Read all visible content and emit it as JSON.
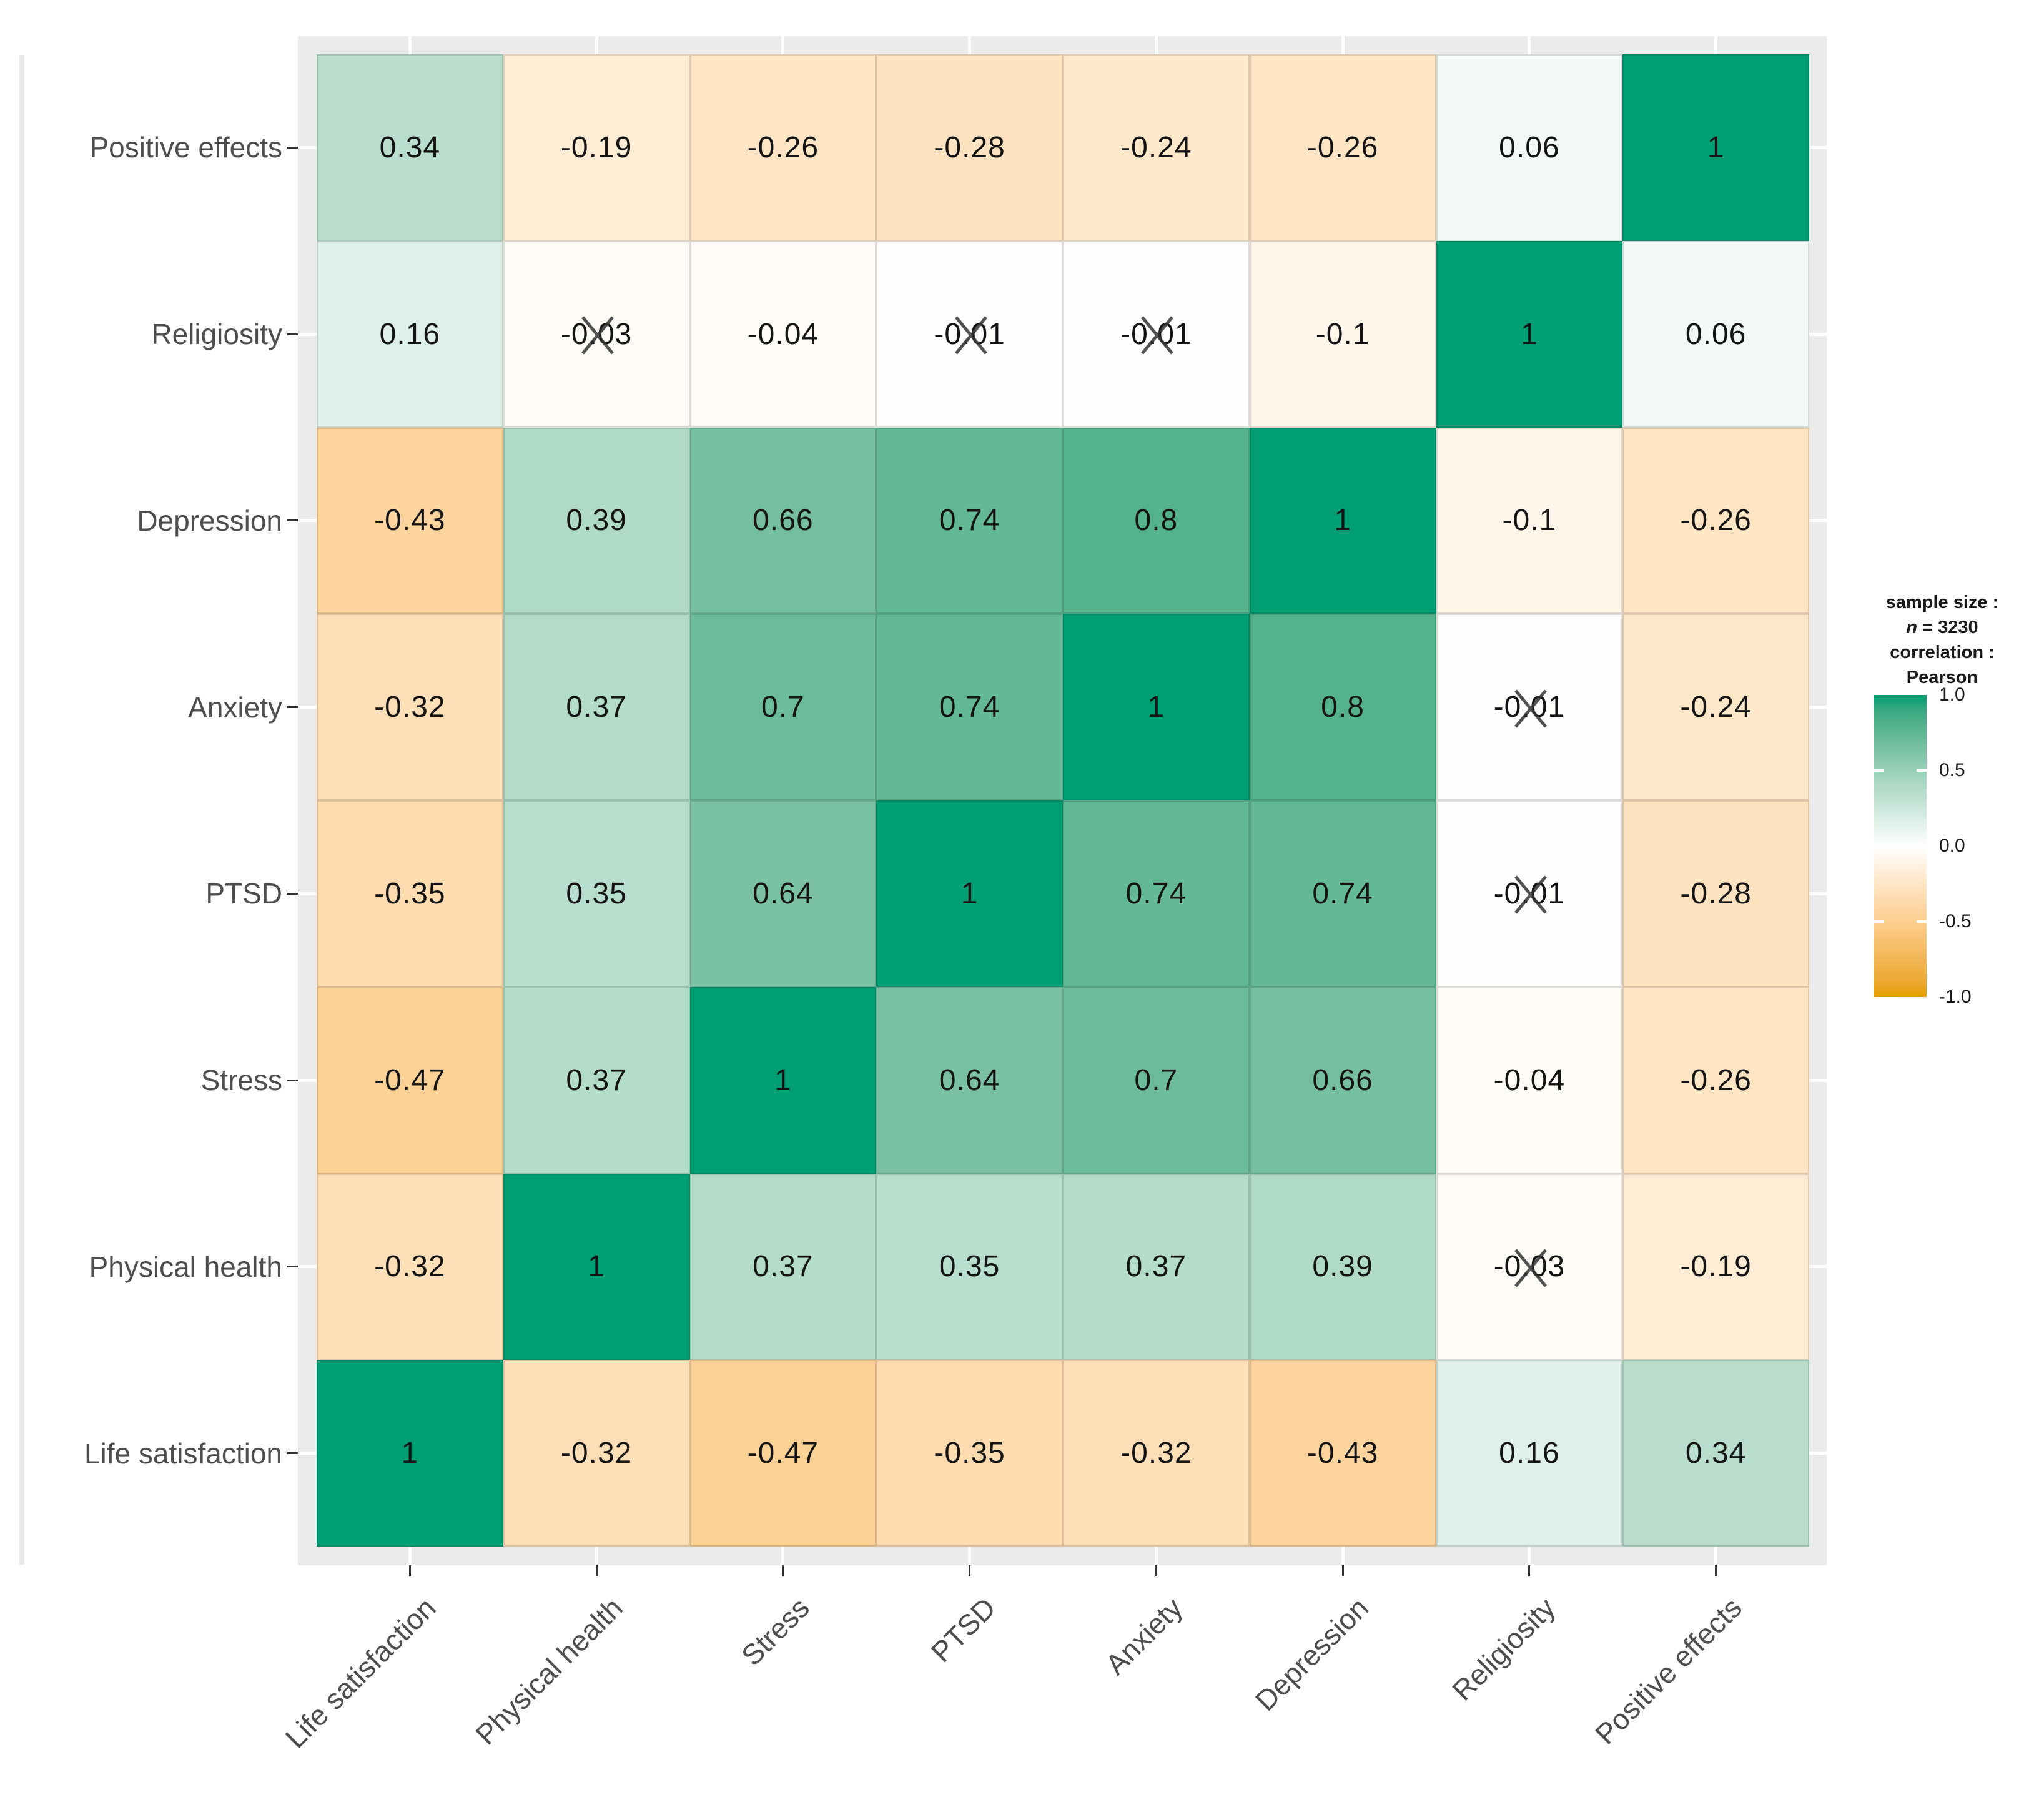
{
  "legend": {
    "sample_size_label": "sample size :",
    "n_italic": "n",
    "n_rest": " = 3230",
    "correlation_label": "correlation :",
    "method": "Pearson",
    "tick_labels": [
      "1.0",
      "0.5",
      "0.0",
      "-0.5",
      "-1.0"
    ],
    "tick_values": [
      1,
      0.5,
      0,
      -0.5,
      -1
    ]
  },
  "chart_data": {
    "type": "heatmap",
    "subtype": "correlation-matrix",
    "sample_size_text": "n = 3230",
    "method": "Pearson",
    "columns": [
      "Life satisfaction",
      "Physical health",
      "Stress",
      "PTSD",
      "Anxiety",
      "Depression",
      "Religiosity",
      "Positive effects"
    ],
    "rows": [
      {
        "label": "Positive effects",
        "values": [
          0.34,
          -0.19,
          -0.26,
          -0.28,
          -0.24,
          -0.26,
          0.06,
          1
        ],
        "crossed": [
          false,
          false,
          false,
          false,
          false,
          false,
          false,
          false
        ]
      },
      {
        "label": "Religiosity",
        "values": [
          0.16,
          -0.03,
          -0.04,
          -0.01,
          -0.01,
          -0.1,
          1,
          0.06
        ],
        "crossed": [
          false,
          true,
          false,
          true,
          true,
          false,
          false,
          false
        ]
      },
      {
        "label": "Depression",
        "values": [
          -0.43,
          0.39,
          0.66,
          0.74,
          0.8,
          1,
          -0.1,
          -0.26
        ],
        "crossed": [
          false,
          false,
          false,
          false,
          false,
          false,
          false,
          false
        ]
      },
      {
        "label": "Anxiety",
        "values": [
          -0.32,
          0.37,
          0.7,
          0.74,
          1,
          0.8,
          -0.01,
          -0.24
        ],
        "crossed": [
          false,
          false,
          false,
          false,
          false,
          false,
          true,
          false
        ]
      },
      {
        "label": "PTSD",
        "values": [
          -0.35,
          0.35,
          0.64,
          1,
          0.74,
          0.74,
          -0.01,
          -0.28
        ],
        "crossed": [
          false,
          false,
          false,
          false,
          false,
          false,
          true,
          false
        ]
      },
      {
        "label": "Stress",
        "values": [
          -0.47,
          0.37,
          1,
          0.64,
          0.7,
          0.66,
          -0.04,
          -0.26
        ],
        "crossed": [
          false,
          false,
          false,
          false,
          false,
          false,
          false,
          false
        ]
      },
      {
        "label": "Physical health",
        "values": [
          -0.32,
          1,
          0.37,
          0.35,
          0.37,
          0.39,
          -0.03,
          -0.19
        ],
        "crossed": [
          false,
          false,
          false,
          false,
          false,
          false,
          true,
          false
        ]
      },
      {
        "label": "Life satisfaction",
        "values": [
          1,
          -0.32,
          -0.47,
          -0.35,
          -0.32,
          -0.43,
          0.16,
          0.34
        ],
        "crossed": [
          false,
          false,
          false,
          false,
          false,
          false,
          false,
          false
        ]
      }
    ],
    "color_scale": {
      "low": "#E69F00",
      "mid": "#FFFFFF",
      "high": "#009E73",
      "domain": [
        -1,
        1
      ]
    },
    "legend_position": "right",
    "grid": "off"
  },
  "colors": {
    "panel_background": "#EBEBEB",
    "gridline": "#FFFFFF",
    "axis_text": "#4D4D4D",
    "value_text": "#141414",
    "tick": "#333333"
  }
}
